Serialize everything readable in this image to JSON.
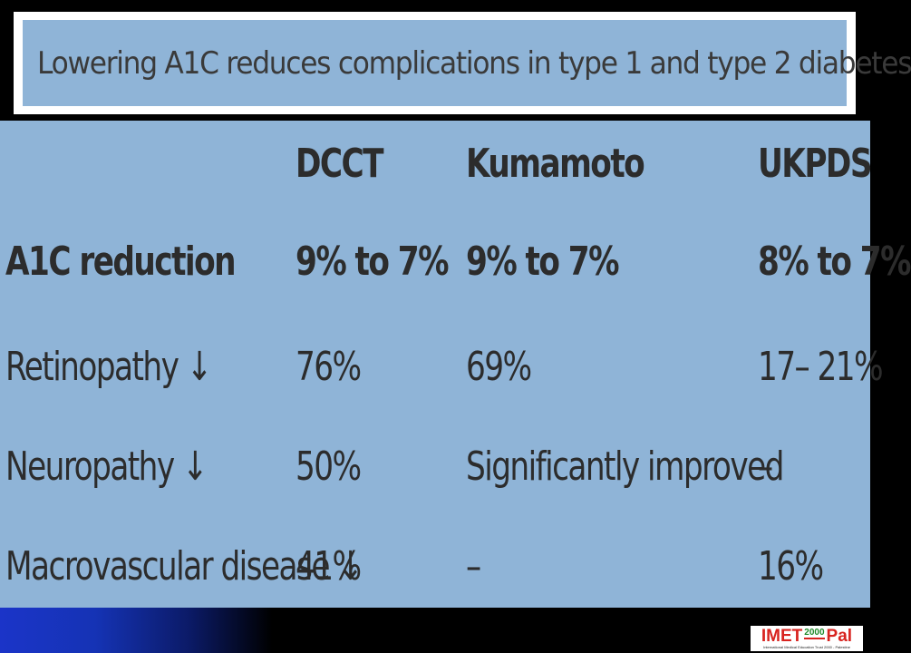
{
  "slide": {
    "title": "Lowering A1C reduces complications in type 1 and type 2 diabetes"
  },
  "table": {
    "columns": [
      "DCCT",
      "Kumamoto",
      "UKPDS"
    ],
    "rows": [
      {
        "label": "A1C reduction",
        "arrow": "",
        "values": [
          "9% to 7%",
          "9% to 7%",
          "8% to 7%"
        ]
      },
      {
        "label": "Retinopathy",
        "arrow": "↓",
        "values": [
          "76%",
          "69%",
          "17– 21%"
        ]
      },
      {
        "label": "Neuropathy",
        "arrow": "↓",
        "values": [
          "50%",
          "Significantly improved",
          "–"
        ]
      },
      {
        "label": "Macrovascular disease",
        "arrow": "↓",
        "values": [
          "41%",
          "–",
          "16%"
        ]
      }
    ]
  },
  "logo": {
    "imet": "IMET",
    "year": "2000",
    "pal": "Pal",
    "subtitle": "International Medical Education Trust 2000 - Palestine"
  },
  "colors": {
    "panel": "#8fb4d7",
    "text": "#2c2c2c",
    "footer_accent": "#1b34c8",
    "logo_red": "#d8231f",
    "logo_green": "#1f8a2a"
  }
}
